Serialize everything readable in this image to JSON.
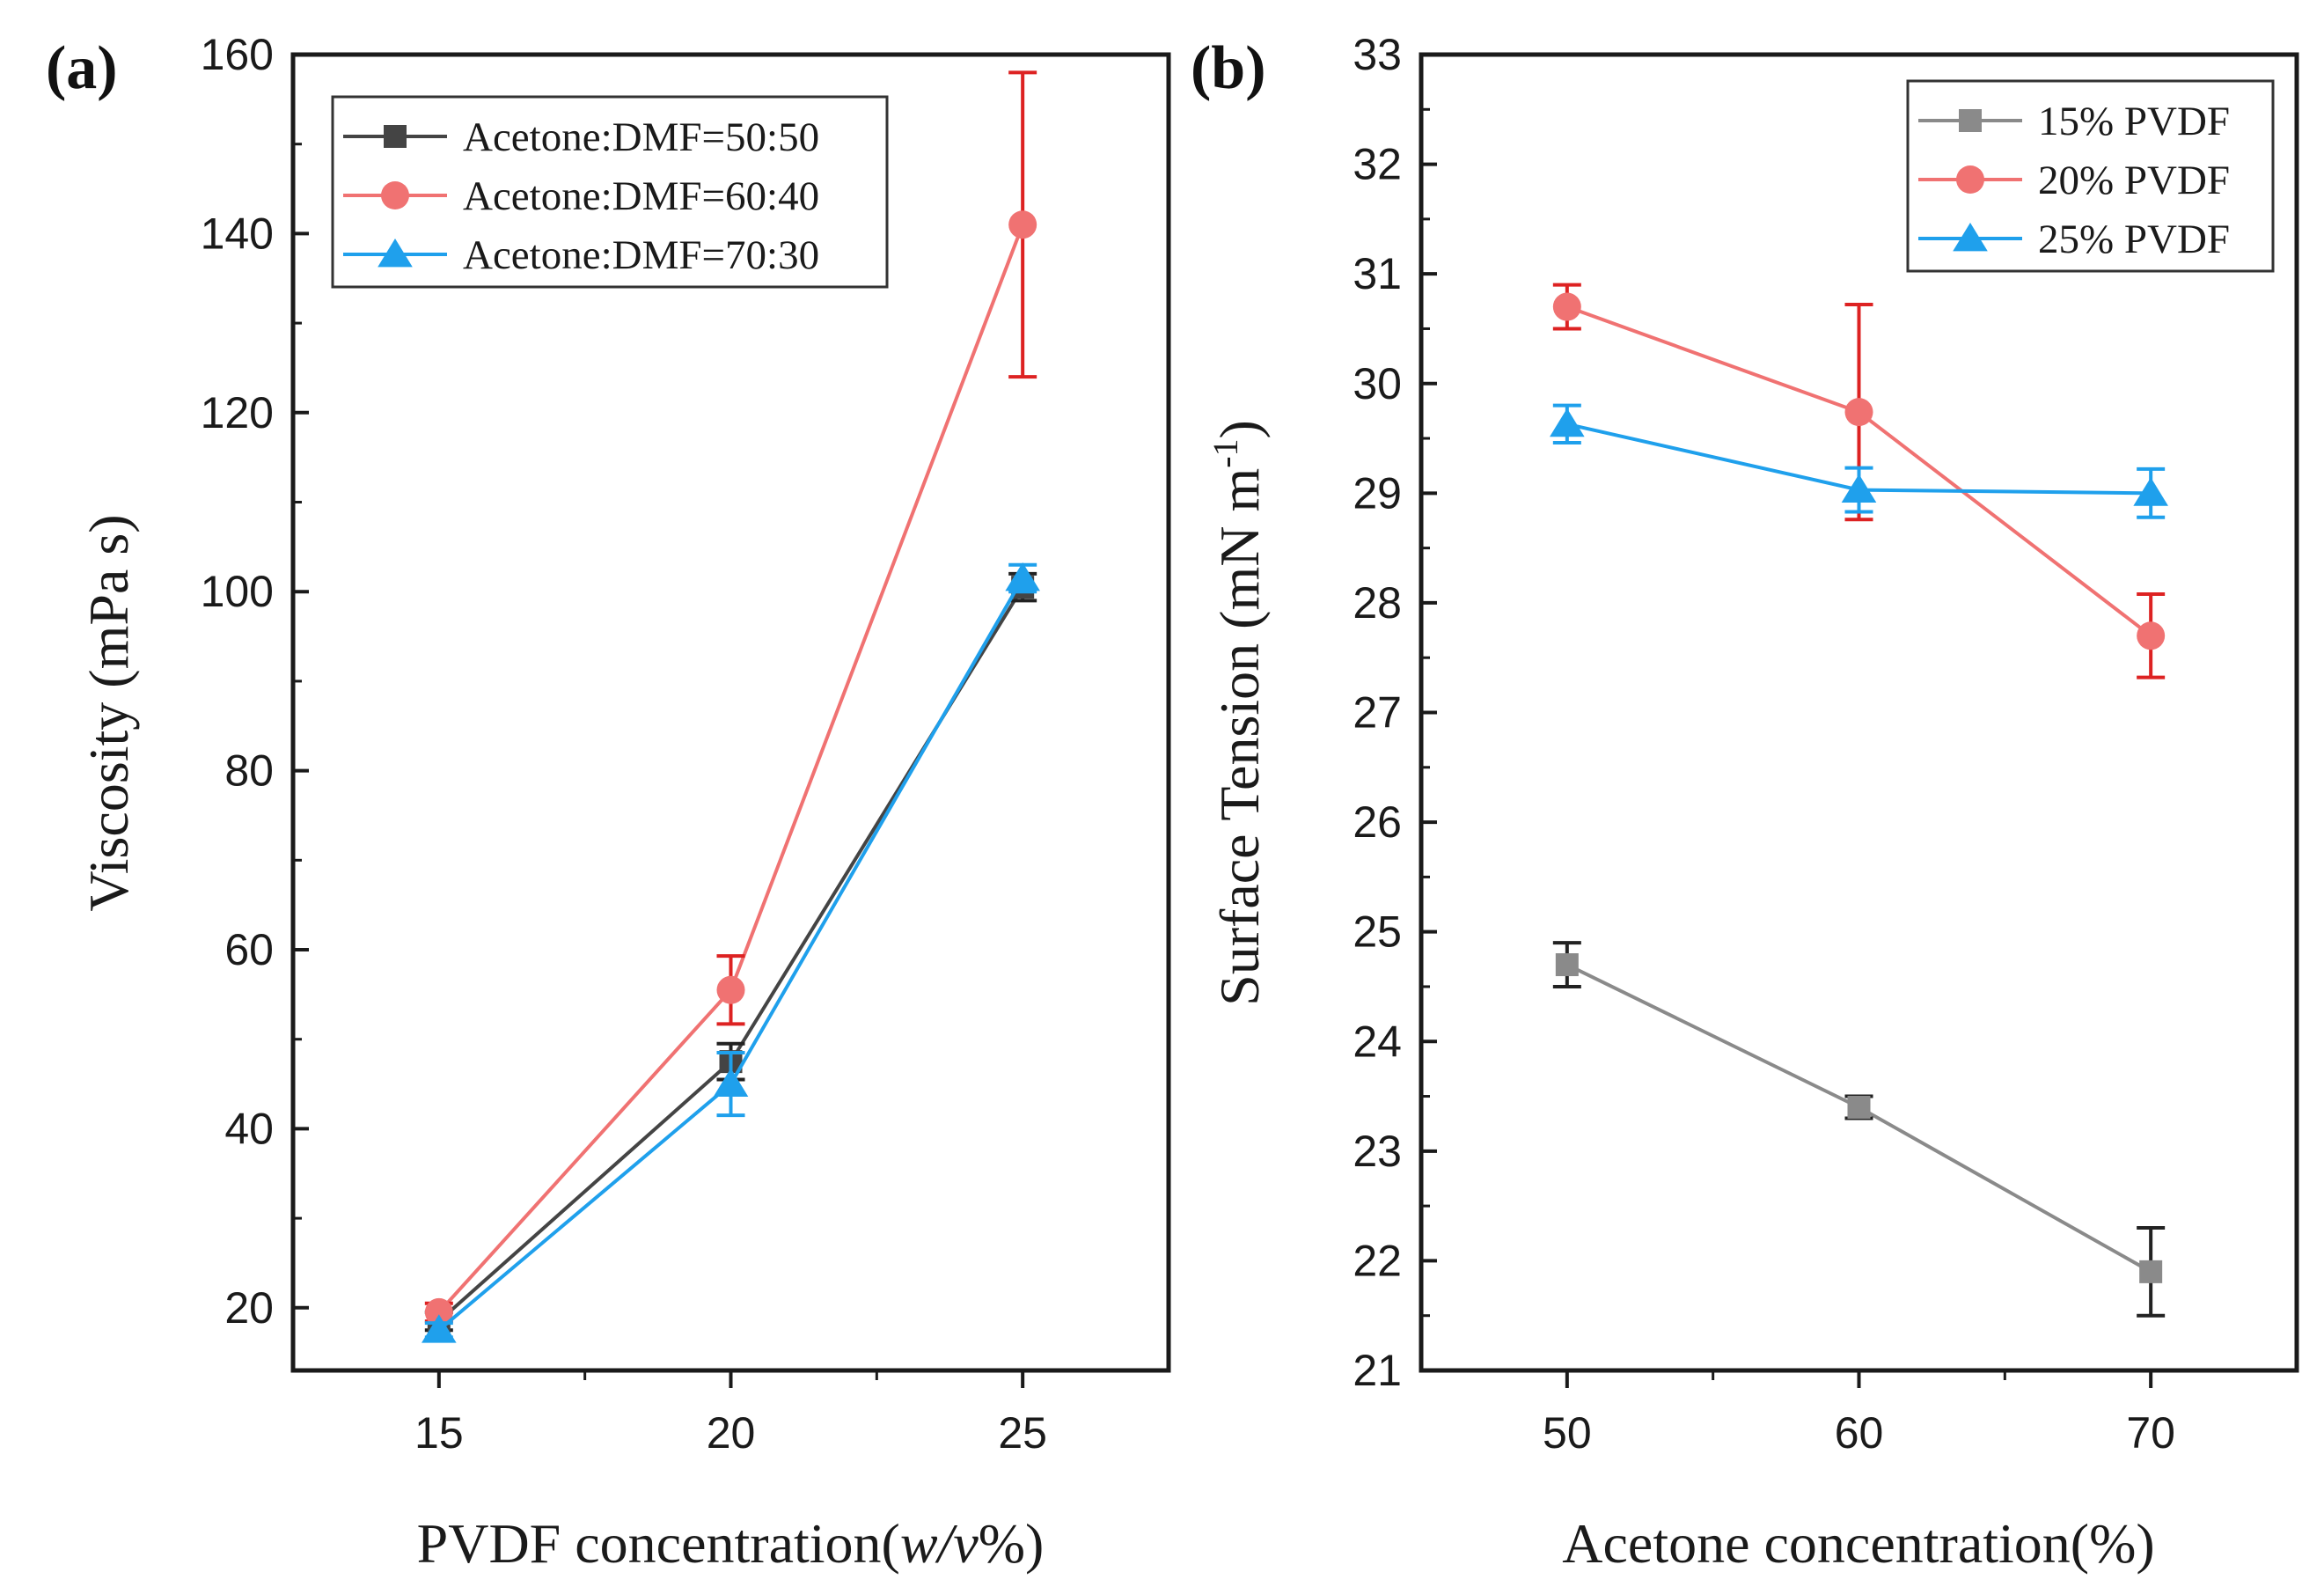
{
  "chart_data": [
    {
      "type": "line",
      "panel_label": "(a)",
      "xlabel": "PVDF concentration(",
      "xlabel_italic": "w/v",
      "xlabel_suffix": "%)",
      "ylabel": "Viscosity (mPa s)",
      "xlim": [
        12.5,
        27.5
      ],
      "ylim": [
        13,
        160
      ],
      "x_ticks": [
        15,
        20,
        25
      ],
      "y_ticks": [
        20,
        40,
        60,
        80,
        100,
        120,
        140,
        160
      ],
      "legend_position": "top-left",
      "series": [
        {
          "name": "Acetone:DMF=50:50",
          "color": "#444444",
          "err_color": "#222222",
          "marker": "square",
          "x": [
            15,
            20,
            25
          ],
          "y": [
            18.5,
            47.5,
            100.5
          ],
          "err": [
            1.0,
            2.0,
            1.5
          ]
        },
        {
          "name": "Acetone:DMF=60:40",
          "color": "#f07272",
          "err_color": "#dd2222",
          "marker": "circle",
          "x": [
            15,
            20,
            25
          ],
          "y": [
            19.5,
            55.5,
            141
          ],
          "err": [
            1.0,
            3.8,
            17
          ]
        },
        {
          "name": "Acetone:DMF=70:30",
          "color": "#1fa0ec",
          "err_color": "#1fa0ec",
          "marker": "triangle",
          "x": [
            15,
            20,
            25
          ],
          "y": [
            17.5,
            45,
            101.5
          ],
          "err": [
            0.8,
            3.5,
            1.5
          ]
        }
      ]
    },
    {
      "type": "line",
      "panel_label": "(b)",
      "xlabel": "Acetone concentration(%)",
      "ylabel": "Surface Tension (mN m",
      "ylabel_sup": "-1",
      "ylabel_suffix": ")",
      "xlim": [
        45,
        75
      ],
      "ylim": [
        21,
        33
      ],
      "x_ticks": [
        50,
        60,
        70
      ],
      "y_ticks": [
        21,
        22,
        23,
        24,
        25,
        26,
        27,
        28,
        29,
        30,
        31,
        32,
        33
      ],
      "legend_position": "top-right",
      "series": [
        {
          "name": "15% PVDF",
          "color": "#8a8a8a",
          "err_color": "#222222",
          "marker": "square",
          "x": [
            50,
            60,
            70
          ],
          "y": [
            24.7,
            23.4,
            21.9
          ],
          "err": [
            0.2,
            0.1,
            0.4
          ]
        },
        {
          "name": "20% PVDF",
          "color": "#f07272",
          "err_color": "#dd2222",
          "marker": "circle",
          "x": [
            50,
            60,
            70
          ],
          "y": [
            30.7,
            29.74,
            27.7
          ],
          "err": [
            0.2,
            0.98,
            0.38
          ]
        },
        {
          "name": "25% PVDF",
          "color": "#1fa0ec",
          "err_color": "#1fa0ec",
          "marker": "triangle",
          "x": [
            50,
            60,
            70
          ],
          "y": [
            29.63,
            29.03,
            29.0
          ],
          "err": [
            0.17,
            0.2,
            0.22
          ]
        }
      ]
    }
  ]
}
